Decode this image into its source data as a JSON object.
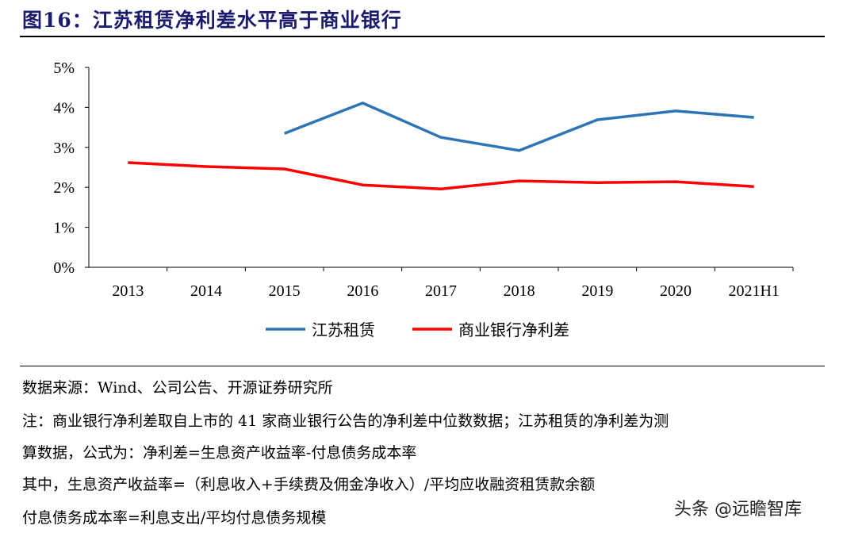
{
  "title": "图16：江苏租赁净利差水平高于商业银行",
  "chart_data": {
    "type": "line",
    "title": "图16：江苏租赁净利差水平高于商业银行",
    "xlabel": "",
    "ylabel": "",
    "categories": [
      "2013",
      "2014",
      "2015",
      "2016",
      "2017",
      "2018",
      "2019",
      "2020",
      "2021H1"
    ],
    "yticks": [
      "0%",
      "1%",
      "2%",
      "3%",
      "4%",
      "5%"
    ],
    "ylim": [
      0,
      5
    ],
    "unit": "%",
    "grid": false,
    "legend_position": "bottom",
    "series": [
      {
        "name": "江苏租赁",
        "color": "#2e75b6",
        "values": [
          null,
          null,
          3.35,
          4.11,
          3.25,
          2.92,
          3.69,
          3.91,
          3.75
        ]
      },
      {
        "name": "商业银行净利差",
        "color": "#ff0000",
        "values": [
          2.62,
          2.52,
          2.46,
          2.06,
          1.96,
          2.16,
          2.12,
          2.14,
          2.02
        ]
      }
    ]
  },
  "notes": [
    "数据来源：Wind、公司公告、开源证券研究所",
    "注：商业银行净利差取自上市的 41 家商业银行公告的净利差中位数数据；江苏租赁的净利差为测",
    "算数据，公式为：净利差=生息资产收益率-付息债务成本率",
    "其中，生息资产收益率=（利息收入+手续费及佣金净收入）/平均应收融资租赁款余额",
    "付息债务成本率=利息支出/平均付息债务规模"
  ],
  "watermark": "头条 @远瞻智库"
}
